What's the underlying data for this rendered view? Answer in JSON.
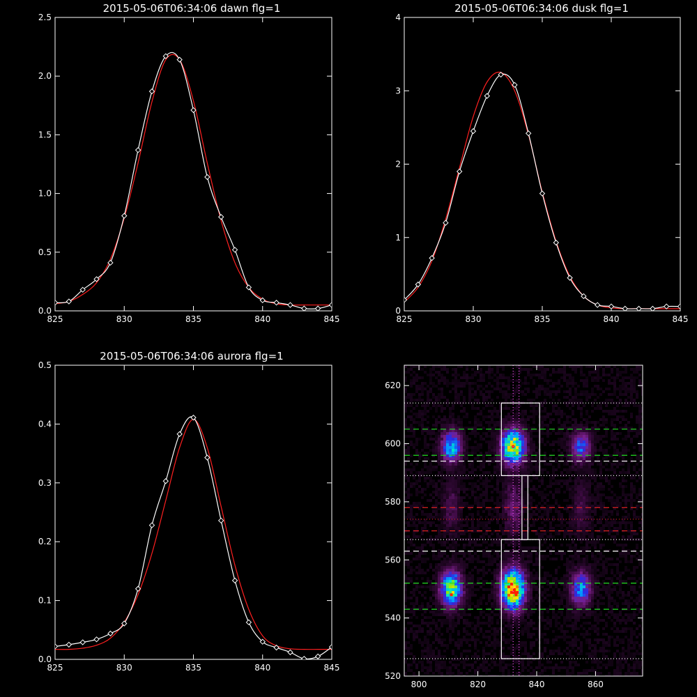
{
  "figure": {
    "background": "#000000",
    "foreground": "#ffffff"
  },
  "chart_data": [
    {
      "type": "line",
      "title": "2015-05-06T06:34:06 dawn flg=1",
      "xlim": [
        825,
        845
      ],
      "ylim": [
        0,
        2.5
      ],
      "xticks": [
        825,
        830,
        835,
        840,
        845
      ],
      "yticks": [
        0.0,
        0.5,
        1.0,
        1.5,
        2.0,
        2.5
      ],
      "xtick_labels": [
        "825",
        "830",
        "835",
        "840",
        "845"
      ],
      "ytick_labels": [
        "0.0",
        "0.5",
        "1.0",
        "1.5",
        "2.0",
        "2.5"
      ],
      "series": [
        {
          "style": "data",
          "color": "#ffffff",
          "marker": "diamond",
          "x": [
            825,
            826,
            827,
            828,
            829,
            830,
            831,
            832,
            833,
            834,
            835,
            836,
            837,
            838,
            839,
            840,
            841,
            842,
            843,
            844,
            845
          ],
          "y": [
            0.07,
            0.08,
            0.18,
            0.27,
            0.41,
            0.81,
            1.37,
            1.87,
            2.17,
            2.14,
            1.71,
            1.14,
            0.8,
            0.52,
            0.2,
            0.09,
            0.07,
            0.05,
            0.02,
            0.02,
            0.05
          ]
        },
        {
          "style": "fit",
          "color": "#ff2020",
          "x": [
            825,
            826,
            827,
            828,
            829,
            830,
            831,
            832,
            833,
            834,
            835,
            836,
            837,
            838,
            839,
            840,
            841,
            842,
            843,
            844,
            845
          ],
          "y": [
            0.06,
            0.08,
            0.14,
            0.24,
            0.44,
            0.79,
            1.26,
            1.78,
            2.14,
            2.14,
            1.79,
            1.26,
            0.77,
            0.41,
            0.2,
            0.1,
            0.06,
            0.05,
            0.05,
            0.05,
            0.05
          ]
        }
      ]
    },
    {
      "type": "line",
      "title": "2015-05-06T06:34:06 dusk flg=1",
      "xlim": [
        825,
        845
      ],
      "ylim": [
        0,
        4
      ],
      "xticks": [
        825,
        830,
        835,
        840,
        845
      ],
      "yticks": [
        0,
        1,
        2,
        3,
        4
      ],
      "xtick_labels": [
        "825",
        "830",
        "835",
        "840",
        "845"
      ],
      "ytick_labels": [
        "0",
        "1",
        "2",
        "3",
        "4"
      ],
      "series": [
        {
          "style": "data",
          "color": "#ffffff",
          "marker": "diamond",
          "x": [
            825,
            826,
            827,
            828,
            829,
            830,
            831,
            832,
            833,
            834,
            835,
            836,
            837,
            838,
            839,
            840,
            841,
            842,
            843,
            844,
            845
          ],
          "y": [
            0.15,
            0.36,
            0.72,
            1.2,
            1.9,
            2.45,
            2.93,
            3.22,
            3.08,
            2.42,
            1.6,
            0.93,
            0.45,
            0.2,
            0.08,
            0.06,
            0.03,
            0.03,
            0.03,
            0.06,
            0.06
          ]
        },
        {
          "style": "fit",
          "color": "#ff2020",
          "x": [
            825,
            826,
            827,
            828,
            829,
            830,
            831,
            832,
            833,
            834,
            835,
            836,
            837,
            838,
            839,
            840,
            841,
            842,
            843,
            844,
            845
          ],
          "y": [
            0.12,
            0.32,
            0.68,
            1.25,
            1.95,
            2.65,
            3.12,
            3.25,
            3.0,
            2.4,
            1.62,
            0.95,
            0.47,
            0.2,
            0.08,
            0.04,
            0.03,
            0.03,
            0.03,
            0.03,
            0.03
          ]
        }
      ]
    },
    {
      "type": "line",
      "title": "2015-05-06T06:34:06 aurora flg=1",
      "xlim": [
        825,
        845
      ],
      "ylim": [
        0,
        0.5
      ],
      "xticks": [
        825,
        830,
        835,
        840,
        845
      ],
      "yticks": [
        0.0,
        0.1,
        0.2,
        0.3,
        0.4,
        0.5
      ],
      "xtick_labels": [
        "825",
        "830",
        "835",
        "840",
        "845"
      ],
      "ytick_labels": [
        "0.0",
        "0.1",
        "0.2",
        "0.3",
        "0.4",
        "0.5"
      ],
      "series": [
        {
          "style": "data",
          "color": "#ffffff",
          "marker": "diamond",
          "x": [
            825,
            826,
            827,
            828,
            829,
            830,
            831,
            832,
            833,
            834,
            835,
            836,
            837,
            838,
            839,
            840,
            841,
            842,
            843,
            844,
            845
          ],
          "y": [
            0.022,
            0.025,
            0.029,
            0.034,
            0.044,
            0.061,
            0.12,
            0.228,
            0.303,
            0.383,
            0.411,
            0.343,
            0.236,
            0.134,
            0.063,
            0.03,
            0.02,
            0.012,
            0.001,
            0.005,
            0.021
          ]
        },
        {
          "style": "fit",
          "color": "#ff2020",
          "x": [
            825,
            826,
            827,
            828,
            829,
            830,
            831,
            832,
            833,
            834,
            835,
            836,
            837,
            838,
            839,
            840,
            841,
            842,
            843,
            844,
            845
          ],
          "y": [
            0.017,
            0.017,
            0.019,
            0.024,
            0.036,
            0.063,
            0.11,
            0.18,
            0.27,
            0.36,
            0.408,
            0.36,
            0.26,
            0.16,
            0.085,
            0.04,
            0.023,
            0.018,
            0.017,
            0.017,
            0.017
          ]
        }
      ]
    },
    {
      "type": "heatmap",
      "title": "",
      "xlim": [
        795,
        876
      ],
      "ylim": [
        520,
        627
      ],
      "xticks": [
        800,
        820,
        840,
        860
      ],
      "yticks": [
        520,
        540,
        560,
        580,
        600,
        620
      ],
      "xtick_labels": [
        "800",
        "820",
        "840",
        "860"
      ],
      "ytick_labels": [
        "520",
        "540",
        "560",
        "580",
        "600",
        "620"
      ],
      "colormap": [
        "#000000",
        "#3a0a3f",
        "#7a1f8a",
        "#2a2ae6",
        "#00a0ff",
        "#00e8c0",
        "#9be800",
        "#ffe000",
        "#ff2000"
      ],
      "blobs": [
        {
          "x": 811,
          "y": 599,
          "sx": 2.2,
          "sy": 3.5,
          "peak": 0.55
        },
        {
          "x": 832,
          "y": 599,
          "sx": 2.6,
          "sy": 4.0,
          "peak": 0.8
        },
        {
          "x": 855,
          "y": 599,
          "sx": 2.2,
          "sy": 3.5,
          "peak": 0.38
        },
        {
          "x": 811,
          "y": 550,
          "sx": 2.4,
          "sy": 4.0,
          "peak": 0.72
        },
        {
          "x": 832,
          "y": 550,
          "sx": 2.6,
          "sy": 4.5,
          "peak": 0.98
        },
        {
          "x": 855,
          "y": 550,
          "sx": 2.3,
          "sy": 4.0,
          "peak": 0.45
        },
        {
          "x": 811,
          "y": 578,
          "sx": 2.0,
          "sy": 6.0,
          "peak": 0.12
        },
        {
          "x": 832,
          "y": 578,
          "sx": 2.0,
          "sy": 6.0,
          "peak": 0.18
        },
        {
          "x": 855,
          "y": 578,
          "sx": 2.0,
          "sy": 6.0,
          "peak": 0.1
        }
      ],
      "hot_pixels": [
        {
          "x": 832,
          "y": 599,
          "color": "#ff2000"
        },
        {
          "x": 833,
          "y": 548,
          "color": "#ff2000"
        },
        {
          "x": 811,
          "y": 548,
          "color": "#ff2000"
        }
      ],
      "hlines": [
        {
          "y": 614,
          "color": "#ffffff",
          "dash": "dotted"
        },
        {
          "y": 605,
          "color": "#22dd22",
          "dash": "dashed"
        },
        {
          "y": 596,
          "color": "#22dd22",
          "dash": "dashed"
        },
        {
          "y": 594,
          "color": "#ffffff",
          "dash": "dashed"
        },
        {
          "y": 589,
          "color": "#ffffff",
          "dash": "dotted"
        },
        {
          "y": 578,
          "color": "#dd2222",
          "dash": "dashed"
        },
        {
          "y": 574,
          "color": "#dd2222",
          "dash": "dotted"
        },
        {
          "y": 570,
          "color": "#dd2222",
          "dash": "dashed"
        },
        {
          "y": 567,
          "color": "#ffffff",
          "dash": "dotted"
        },
        {
          "y": 563,
          "color": "#ffffff",
          "dash": "dashed"
        },
        {
          "y": 552,
          "color": "#22dd22",
          "dash": "dashed"
        },
        {
          "y": 543,
          "color": "#22dd22",
          "dash": "dashed"
        },
        {
          "y": 526,
          "color": "#ffffff",
          "dash": "dotted"
        }
      ],
      "vlines": [
        {
          "x": 832,
          "color": "#ff55ff",
          "dash": "dotted"
        },
        {
          "x": 834,
          "color": "#ff55ff",
          "dash": "dotted"
        }
      ],
      "boxes": [
        {
          "x0": 828,
          "x1": 841,
          "y0": 589,
          "y1": 614,
          "color": "#ffffff"
        },
        {
          "x0": 835,
          "x1": 837,
          "y0": 567,
          "y1": 589,
          "color": "#ffffff"
        },
        {
          "x0": 828,
          "x1": 841,
          "y0": 526,
          "y1": 567,
          "color": "#ffffff"
        }
      ]
    }
  ]
}
